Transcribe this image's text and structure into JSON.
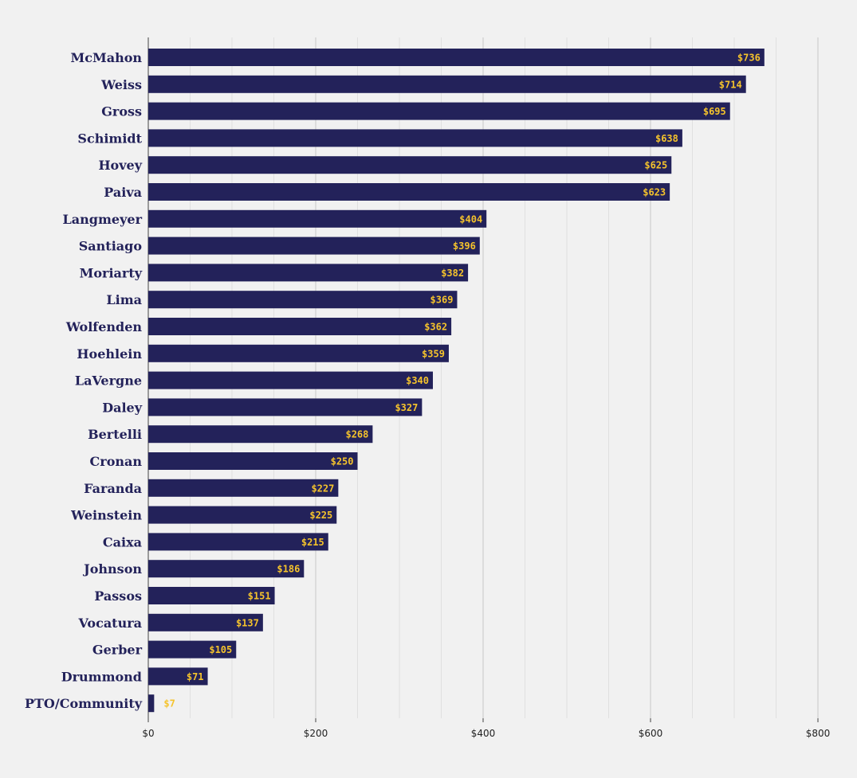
{
  "chart_data": {
    "type": "bar",
    "orientation": "horizontal",
    "categories": [
      "McMahon",
      "Weiss",
      "Gross",
      "Schimidt",
      "Hovey",
      "Paiva",
      "Langmeyer",
      "Santiago",
      "Moriarty",
      "Lima",
      "Wolfenden",
      "Hoehlein",
      "LaVergne",
      "Daley",
      "Bertelli",
      "Cronan",
      "Faranda",
      "Weinstein",
      "Caixa",
      "Johnson",
      "Passos",
      "Vocatura",
      "Gerber",
      "Drummond",
      "PTO/Community"
    ],
    "values": [
      736,
      714,
      695,
      638,
      625,
      623,
      404,
      396,
      382,
      369,
      362,
      359,
      340,
      327,
      268,
      250,
      227,
      225,
      215,
      186,
      151,
      137,
      105,
      71,
      7
    ],
    "data_labels": [
      "$736",
      "$714",
      "$695",
      "$638",
      "$625",
      "$623",
      "$404",
      "$396",
      "$382",
      "$369",
      "$362",
      "$359",
      "$340",
      "$327",
      "$268",
      "$250",
      "$227",
      "$225",
      "$215",
      "$186",
      "$151",
      "$137",
      "$105",
      "$71",
      "$7"
    ],
    "x_ticks": [
      0,
      200,
      400,
      600,
      800
    ],
    "x_tick_labels": [
      "$0",
      "$200",
      "$400",
      "$600",
      "$800"
    ],
    "xlim": [
      0,
      800
    ],
    "minor_grid_step": 50,
    "grid": true,
    "title": "",
    "xlabel": "",
    "ylabel": "",
    "colors": {
      "bar": "#23225a",
      "label_on_bar": "#f5c32c",
      "background": "#f1f1f1",
      "major_grid": "#c8c8c8",
      "minor_grid": "#e0e0e0",
      "category_text": "#23225a"
    }
  }
}
